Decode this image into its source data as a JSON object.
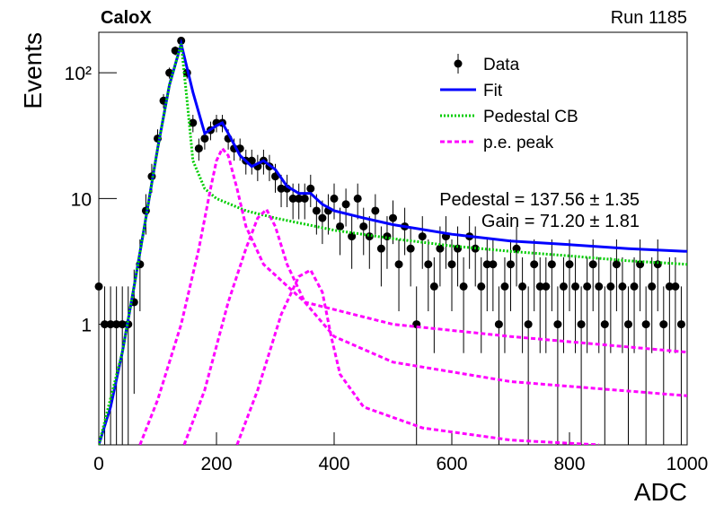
{
  "chart_data": {
    "type": "scatter",
    "title": "CaloX",
    "subtitle": "Run 1185",
    "y_label": "Events",
    "x_label": "ADC",
    "log_y": true,
    "xlim": [
      0,
      1000
    ],
    "ylim": [
      0.11,
      210
    ],
    "xticks": [
      0,
      200,
      400,
      600,
      800,
      1000
    ],
    "yticks": [
      1,
      10,
      {
        "value": 100,
        "label": "10²"
      }
    ],
    "annotations": [
      "Pedestal = 137.56 ± 1.35",
      "Gain = 71.20 ± 1.81"
    ],
    "series": [
      {
        "name": "Data",
        "color": "#000000",
        "x": [
          0,
          10,
          20,
          30,
          40,
          50,
          60,
          70,
          80,
          90,
          100,
          110,
          120,
          130,
          140,
          150,
          160,
          170,
          180,
          190,
          200,
          210,
          220,
          230,
          240,
          250,
          260,
          270,
          280,
          290,
          300,
          310,
          320,
          330,
          340,
          350,
          360,
          370,
          380,
          390,
          400,
          410,
          420,
          430,
          440,
          450,
          460,
          470,
          480,
          490,
          500,
          510,
          520,
          530,
          540,
          550,
          560,
          570,
          580,
          590,
          600,
          610,
          620,
          630,
          640,
          650,
          660,
          670,
          680,
          690,
          700,
          710,
          720,
          730,
          740,
          750,
          760,
          770,
          780,
          790,
          800,
          810,
          820,
          830,
          840,
          850,
          860,
          870,
          880,
          890,
          900,
          910,
          920,
          930,
          940,
          950,
          960,
          970,
          980,
          990
        ],
        "values": [
          2,
          1,
          1,
          1,
          1,
          1,
          1.5,
          3,
          8,
          15,
          30,
          60,
          100,
          150,
          180,
          100,
          40,
          25,
          30,
          35,
          40,
          40,
          30,
          25,
          25,
          20,
          20,
          18,
          20,
          18,
          15,
          12,
          12,
          10,
          10,
          10,
          12,
          8,
          7,
          8,
          10,
          6,
          9,
          5,
          10,
          6,
          5,
          8,
          4,
          5,
          7,
          3,
          6,
          4,
          1,
          5,
          3,
          2,
          4,
          5,
          3,
          4,
          2,
          5,
          4,
          2,
          3,
          3,
          1,
          2,
          3,
          4,
          2,
          1,
          3,
          2,
          2,
          3,
          1,
          2,
          3,
          2,
          1,
          2,
          3,
          2,
          1,
          2,
          3,
          2,
          1,
          2,
          3,
          1,
          2,
          3,
          1,
          2,
          2,
          1
        ],
        "errors": [
          1.41,
          1,
          1,
          1,
          1,
          1,
          1.22,
          1.73,
          2.83,
          3.87,
          5.48,
          7.75,
          10,
          12.25,
          13.42,
          10,
          6.32,
          5,
          5.48,
          5.92,
          6.32,
          6.32,
          5.48,
          5,
          5,
          4.47,
          4.47,
          4.24,
          4.47,
          4.24,
          3.87,
          3.46,
          3.46,
          3.16,
          3.16,
          3.16,
          3.46,
          2.83,
          2.65,
          2.83,
          3.16,
          2.45,
          3,
          2.24,
          3.16,
          2.45,
          2.24,
          2.83,
          2,
          2.24,
          2.65,
          1.73,
          2.45,
          2,
          1,
          2.24,
          1.73,
          1.41,
          2,
          2.24,
          1.73,
          2,
          1.41,
          2.24,
          2,
          1.41,
          1.73,
          1.73,
          1,
          1.41,
          1.73,
          2,
          1.41,
          1,
          1.73,
          1.41,
          1.41,
          1.73,
          1,
          1.41,
          1.73,
          1.41,
          1,
          1.41,
          1.73,
          1.41,
          1,
          1.41,
          1.73,
          1.41,
          1,
          1.41,
          1.73,
          1,
          1.41,
          1.73,
          1,
          1.41,
          1.41,
          1
        ]
      },
      {
        "name": "Fit",
        "color": "#0000ff",
        "style": "solid",
        "x": [
          0,
          20,
          40,
          60,
          80,
          100,
          120,
          140,
          160,
          180,
          200,
          210,
          220,
          240,
          260,
          280,
          300,
          320,
          340,
          360,
          380,
          400,
          450,
          500,
          600,
          700,
          800,
          900,
          1000
        ],
        "values": [
          0.11,
          0.22,
          0.6,
          2,
          7,
          25,
          80,
          170,
          70,
          33,
          38,
          40,
          33,
          22,
          18,
          20,
          17,
          12.5,
          11,
          11,
          9,
          8,
          7,
          6.2,
          5.2,
          4.6,
          4.3,
          4.0,
          3.8
        ]
      },
      {
        "name": "Pedestal CB",
        "color": "#00cc00",
        "style": "dotted",
        "x": [
          0,
          40,
          60,
          80,
          100,
          120,
          140,
          150,
          160,
          180,
          200,
          250,
          300,
          400,
          500,
          600,
          700,
          800,
          900,
          1000
        ],
        "values": [
          0.11,
          0.6,
          2,
          7,
          25,
          80,
          170,
          60,
          20,
          12,
          10,
          8,
          7,
          5.6,
          4.8,
          4.2,
          3.8,
          3.5,
          3.2,
          3
        ]
      },
      {
        "name": "p.e. peak",
        "color": "#ff00ff",
        "style": "dashed",
        "x": [
          70,
          100,
          140,
          170,
          190,
          200,
          210,
          220,
          235,
          250,
          280,
          350,
          500,
          700,
          1000,
          null,
          145,
          180,
          220,
          250,
          270,
          285,
          300,
          320,
          350,
          400,
          500,
          700,
          1000,
          null,
          235,
          270,
          310,
          340,
          360,
          380,
          395,
          410,
          450,
          550,
          700,
          850
        ],
        "values": [
          0.11,
          0.25,
          1,
          4,
          12,
          20,
          25,
          22,
          12,
          6,
          3,
          1.5,
          1.0,
          0.8,
          0.6,
          null,
          0.11,
          0.3,
          1.5,
          4,
          7,
          8.2,
          6,
          3,
          1.5,
          0.8,
          0.5,
          0.35,
          0.27,
          null,
          0.11,
          0.3,
          1.2,
          2.4,
          2.7,
          1.8,
          0.8,
          0.4,
          0.22,
          0.15,
          0.12,
          0.11
        ]
      }
    ]
  }
}
